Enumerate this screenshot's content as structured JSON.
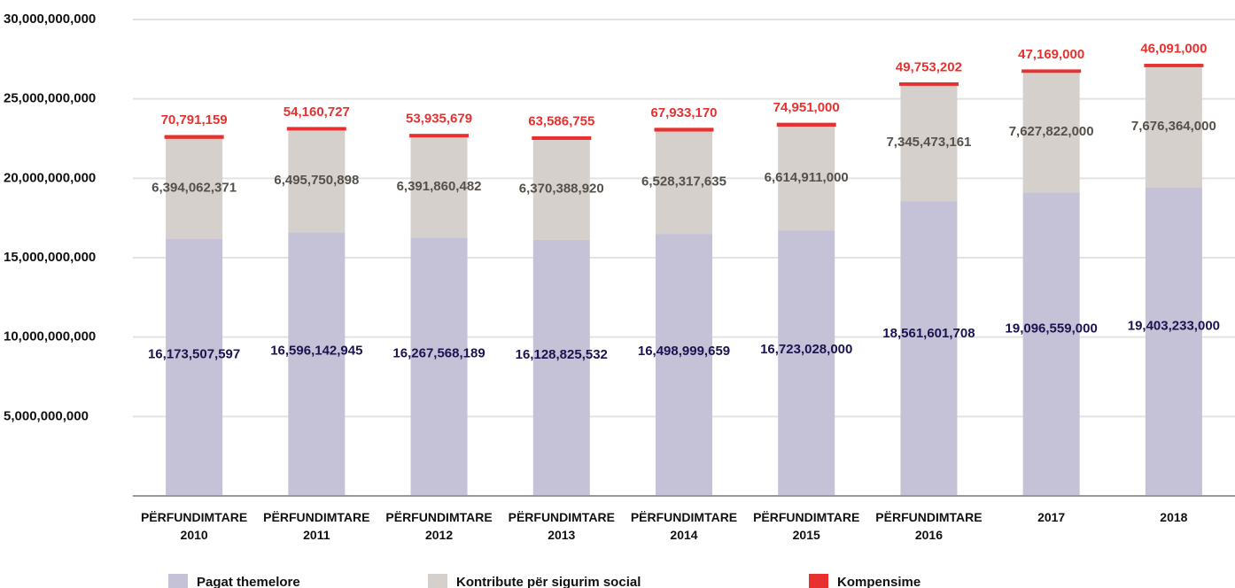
{
  "chart_data": {
    "type": "stacked_bar",
    "categories": [
      "PËRFUNDIMTARE 2010",
      "PËRFUNDIMTARE 2011",
      "PËRFUNDIMTARE 2012",
      "PËRFUNDIMTARE 2013",
      "PËRFUNDIMTARE 2014",
      "PËRFUNDIMTARE 2015",
      "PËRFUNDIMTARE 2016",
      "2017",
      "2018"
    ],
    "series": [
      {
        "name": "Pagat themelore",
        "color": "#c5c1d6",
        "label_color": "#1a1450",
        "values": [
          16173507597,
          16596142945,
          16267568189,
          16128825532,
          16498999659,
          16723028000,
          18561601708,
          19096559000,
          19403233000
        ],
        "value_labels": [
          "16,173,507,597",
          "16,596,142,945",
          "16,267,568,189",
          "16,128,825,532",
          "16,498,999,659",
          "16,723,028,000",
          "18,561,601,708",
          "19,096,559,000",
          "19,403,233,000"
        ]
      },
      {
        "name": "Kontribute për sigurim social",
        "color": "#d5d0cc",
        "label_color": "#56504a",
        "values": [
          6394062371,
          6495750898,
          6391860482,
          6370388920,
          6528317635,
          6614911000,
          7345473161,
          7627822000,
          7676364000
        ],
        "value_labels": [
          "6,394,062,371",
          "6,495,750,898",
          "6,391,860,482",
          "6,370,388,920",
          "6,528,317,635",
          "6,614,911,000",
          "7,345,473,161",
          "7,627,822,000",
          "7,676,364,000"
        ]
      },
      {
        "name": "Kompensime",
        "color": "#e8312f",
        "label_color": "#e8312f",
        "values": [
          70791159,
          54160727,
          53935679,
          63586755,
          67933170,
          74951000,
          49753202,
          47169000,
          46091000
        ],
        "value_labels": [
          "70,791,159",
          "54,160,727",
          "53,935,679",
          "63,586,755",
          "67,933,170",
          "74,951,000",
          "49,753,202",
          "47,169,000",
          "46,091,000"
        ]
      }
    ],
    "ylim": [
      0,
      30000000000
    ],
    "yticks": [
      {
        "value": 5000000000,
        "label": "5,000,000,000"
      },
      {
        "value": 10000000000,
        "label": "10,000,000,000"
      },
      {
        "value": 15000000000,
        "label": "15,000,000,000"
      },
      {
        "value": 20000000000,
        "label": "20,000,000,000"
      },
      {
        "value": 25000000000,
        "label": "25,000,000,000"
      },
      {
        "value": 30000000000,
        "label": "30,000,000,000"
      }
    ],
    "grid": true
  }
}
